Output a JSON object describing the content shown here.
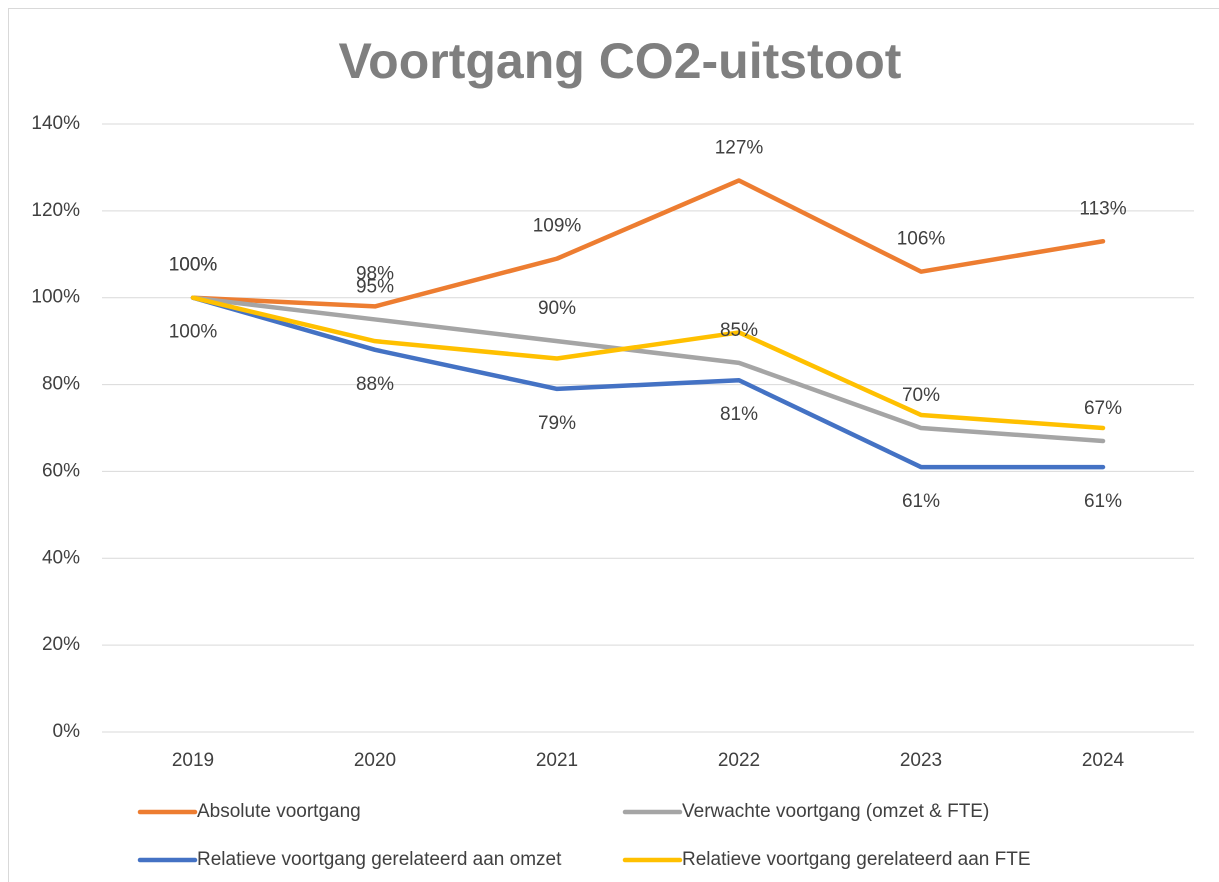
{
  "chart_data": {
    "type": "line",
    "title": "Voortgang CO2-uitstoot",
    "categories": [
      "2019",
      "2020",
      "2021",
      "2022",
      "2023",
      "2024"
    ],
    "ylim": [
      0,
      140
    ],
    "yticks": [
      {
        "value": 0,
        "label": "0%"
      },
      {
        "value": 20,
        "label": "20%"
      },
      {
        "value": 40,
        "label": "40%"
      },
      {
        "value": 60,
        "label": "60%"
      },
      {
        "value": 80,
        "label": "80%"
      },
      {
        "value": 100,
        "label": "100%"
      },
      {
        "value": 120,
        "label": "120%"
      },
      {
        "value": 140,
        "label": "140%"
      }
    ],
    "grid": true,
    "legend": "bottom",
    "series": [
      {
        "name": "Absolute voortgang",
        "color": "#ed7d31",
        "values": [
          100,
          98,
          109,
          127,
          106,
          113
        ],
        "value_labels": [
          "100%",
          "98%",
          "109%",
          "127%",
          "106%",
          "113%"
        ],
        "label_position": "above"
      },
      {
        "name": "Verwachte voortgang (omzet & FTE)",
        "color": "#a5a5a5",
        "values": [
          100,
          95,
          90,
          85,
          70,
          67
        ],
        "value_labels": [
          "100%",
          "95%",
          "90%",
          "85%",
          "70%",
          "67%"
        ],
        "label_position": "above"
      },
      {
        "name": "Relatieve voortgang gerelateerd aan omzet",
        "color": "#4472c4",
        "values": [
          100,
          88,
          79,
          81,
          61,
          61
        ],
        "value_labels": [
          "100%",
          "88%",
          "79%",
          "81%",
          "61%",
          "61%"
        ],
        "label_position": "below"
      },
      {
        "name": "Relatieve voortgang gerelateerd aan FTE",
        "color": "#ffc000",
        "values": [
          100,
          90,
          86,
          92,
          73,
          70
        ]
      }
    ]
  }
}
